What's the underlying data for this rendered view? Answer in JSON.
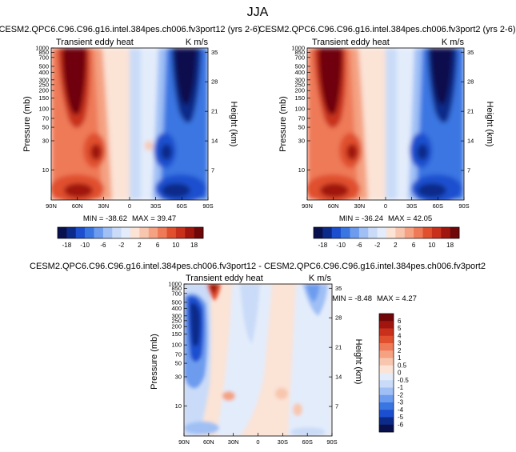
{
  "season_title": "JJA",
  "palette": {
    "blue": [
      "#08104e",
      "#0c2a8a",
      "#1c4fcf",
      "#3a76e2",
      "#6d9cef",
      "#9fbff5",
      "#c9dbf8",
      "#e3ecfb"
    ],
    "red": [
      "#fbe3d6",
      "#f8c6ae",
      "#f4a282",
      "#ee7a58",
      "#e0502f",
      "#c8301c",
      "#a0160f",
      "#700608"
    ]
  },
  "chart_data": [
    {
      "type": "contour",
      "title": "CESM2.QPC6.C96.C96.g16.intel.384pes.ch006.fv3port12 (yrs 2-6)",
      "left_label": "Transient eddy heat",
      "units": "K m/s",
      "ylabel": "Pressure (mb)",
      "y2label": "Height (km)",
      "xticks": [
        "90N",
        "60N",
        "30N",
        "0",
        "30S",
        "60S",
        "90S"
      ],
      "yticks": [
        "10",
        "30",
        "50",
        "70",
        "100",
        "150",
        "200",
        "250",
        "300",
        "400",
        "500",
        "700",
        "850",
        "1000"
      ],
      "y2ticks": [
        "35",
        "28",
        "21",
        "14",
        "7"
      ],
      "min_label": "MIN = -38.62",
      "max_label": "MAX = 39.47",
      "colorbar_labels": [
        "-18",
        "-10",
        "-6",
        "-2",
        "2",
        "6",
        "10",
        "18"
      ]
    },
    {
      "type": "contour",
      "title": "CESM2.QPC6.C96.C96.g16.intel.384pes.ch006.fv3port2 (yrs 2-6)",
      "left_label": "Transient eddy heat",
      "units": "K m/s",
      "ylabel": "Pressure (mb)",
      "y2label": "Height (km)",
      "xticks": [
        "90N",
        "60N",
        "30N",
        "0",
        "30S",
        "60S",
        "90S"
      ],
      "yticks": [
        "10",
        "30",
        "50",
        "70",
        "100",
        "150",
        "200",
        "250",
        "300",
        "400",
        "500",
        "700",
        "850",
        "1000"
      ],
      "y2ticks": [
        "35",
        "28",
        "21",
        "14",
        "7"
      ],
      "min_label": "MIN = -36.24",
      "max_label": "MAX = 42.05",
      "colorbar_labels": [
        "-18",
        "-10",
        "-6",
        "-2",
        "2",
        "6",
        "10",
        "18"
      ]
    },
    {
      "type": "contour",
      "title": "CESM2.QPC6.C96.C96.g16.intel.384pes.ch006.fv3port12 - CESM2.QPC6.C96.C96.g16.intel.384pes.ch006.fv3port2",
      "left_label": "Transient eddy heat",
      "units": "K m/s",
      "ylabel": "Pressure (mb)",
      "y2label": "Height (km)",
      "xticks": [
        "90N",
        "60N",
        "30N",
        "0",
        "30S",
        "60S",
        "90S"
      ],
      "yticks": [
        "10",
        "30",
        "50",
        "70",
        "100",
        "150",
        "200",
        "250",
        "300",
        "400",
        "500",
        "700",
        "850",
        "1000"
      ],
      "y2ticks": [
        "35",
        "28",
        "21",
        "14",
        "7"
      ],
      "min_label": "MIN = -8.48",
      "max_label": "MAX =  4.27",
      "colorbar_labels": [
        "6",
        "5",
        "4",
        "3",
        "2",
        "1",
        "0.5",
        "0",
        "-0.5",
        "-1",
        "-2",
        "-3",
        "-4",
        "-5",
        "-6"
      ]
    }
  ]
}
